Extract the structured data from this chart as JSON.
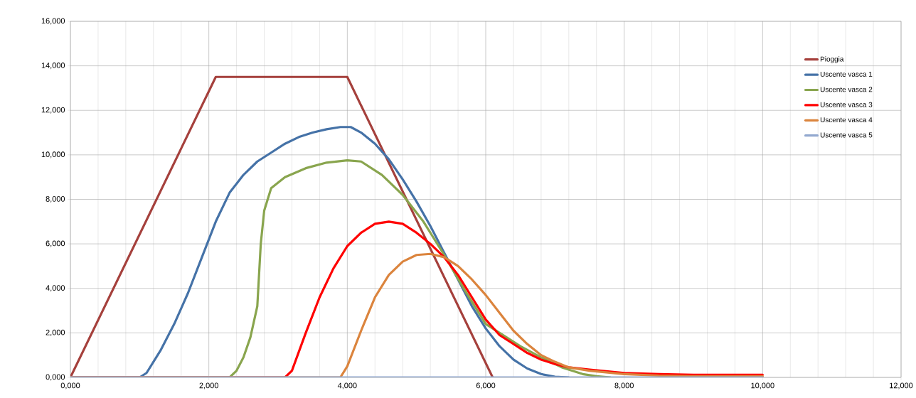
{
  "chart_data": {
    "type": "line",
    "xlim": [
      0,
      12
    ],
    "ylim": [
      0,
      16
    ],
    "xticks": [
      {
        "value": 0,
        "label": "0,000"
      },
      {
        "value": 2,
        "label": "2,000"
      },
      {
        "value": 4,
        "label": "4,000"
      },
      {
        "value": 6,
        "label": "6,000"
      },
      {
        "value": 8,
        "label": "8,000"
      },
      {
        "value": 10,
        "label": "10,000"
      },
      {
        "value": 12,
        "label": "12,000"
      }
    ],
    "yticks": [
      {
        "value": 0,
        "label": "0,000"
      },
      {
        "value": 2,
        "label": "2,000"
      },
      {
        "value": 4,
        "label": "4,000"
      },
      {
        "value": 6,
        "label": "6,000"
      },
      {
        "value": 8,
        "label": "8,000"
      },
      {
        "value": 10,
        "label": "10,000"
      },
      {
        "value": 12,
        "label": "12,000"
      },
      {
        "value": 14,
        "label": "14,000"
      },
      {
        "value": 16,
        "label": "16,000"
      }
    ],
    "grid": true,
    "legend": "top right",
    "marker": "none",
    "line_style": "solid",
    "series": [
      {
        "name": "Pioggia",
        "color": "#a5403c",
        "x": [
          0,
          2.1,
          4.0,
          6.1
        ],
        "values": [
          0,
          13.5,
          13.5,
          0
        ]
      },
      {
        "name": "Uscente vasca 1",
        "color": "#4572a7",
        "x": [
          0,
          1.0,
          1.1,
          1.3,
          1.5,
          1.7,
          1.9,
          2.1,
          2.3,
          2.5,
          2.7,
          2.9,
          3.1,
          3.3,
          3.5,
          3.7,
          3.9,
          4.05,
          4.2,
          4.4,
          4.6,
          4.8,
          5.0,
          5.2,
          5.4,
          5.6,
          5.8,
          6.0,
          6.2,
          6.4,
          6.6,
          6.8,
          7.0,
          7.2
        ],
        "values": [
          0,
          0,
          0.2,
          1.2,
          2.4,
          3.8,
          5.4,
          7.0,
          8.3,
          9.1,
          9.7,
          10.1,
          10.5,
          10.8,
          11.0,
          11.15,
          11.25,
          11.25,
          11.0,
          10.5,
          9.8,
          8.9,
          7.9,
          6.8,
          5.6,
          4.4,
          3.2,
          2.2,
          1.4,
          0.8,
          0.4,
          0.15,
          0.03,
          0
        ]
      },
      {
        "name": "Uscente vasca 2",
        "color": "#89a54e",
        "x": [
          0,
          2.3,
          2.4,
          2.5,
          2.6,
          2.7,
          2.75,
          2.8,
          2.9,
          3.1,
          3.4,
          3.7,
          4.0,
          4.2,
          4.5,
          4.8,
          5.1,
          5.4,
          5.7,
          6.0,
          6.2,
          6.5,
          6.8,
          7.1,
          7.4,
          7.6,
          7.8
        ],
        "values": [
          0,
          0,
          0.3,
          0.9,
          1.8,
          3.2,
          6.0,
          7.5,
          8.5,
          9.0,
          9.4,
          9.65,
          9.75,
          9.7,
          9.1,
          8.2,
          7.0,
          5.5,
          3.9,
          2.4,
          2.0,
          1.4,
          0.9,
          0.45,
          0.15,
          0.05,
          0
        ]
      },
      {
        "name": "Uscente vasca 3",
        "color": "#ff0000",
        "x": [
          0,
          3.1,
          3.2,
          3.4,
          3.6,
          3.8,
          4.0,
          4.2,
          4.4,
          4.6,
          4.8,
          5.0,
          5.2,
          5.4,
          5.6,
          5.8,
          6.0,
          6.2,
          6.4,
          6.6,
          6.8,
          7.0,
          7.2,
          7.5,
          8.0,
          8.5,
          9.0,
          10.0
        ],
        "values": [
          0,
          0,
          0.3,
          2.0,
          3.6,
          4.9,
          5.9,
          6.5,
          6.9,
          7.0,
          6.9,
          6.5,
          6.0,
          5.4,
          4.6,
          3.6,
          2.6,
          1.9,
          1.5,
          1.1,
          0.8,
          0.6,
          0.45,
          0.35,
          0.2,
          0.15,
          0.12,
          0.12
        ]
      },
      {
        "name": "Uscente vasca 4",
        "color": "#db843d",
        "x": [
          0,
          3.9,
          4.0,
          4.2,
          4.4,
          4.6,
          4.8,
          5.0,
          5.2,
          5.4,
          5.6,
          5.8,
          6.0,
          6.2,
          6.4,
          6.6,
          6.8,
          7.0,
          7.2,
          7.5,
          8.0,
          8.5,
          9.0,
          10.0
        ],
        "values": [
          0,
          0,
          0.5,
          2.1,
          3.6,
          4.6,
          5.2,
          5.5,
          5.55,
          5.4,
          5.0,
          4.4,
          3.7,
          2.9,
          2.1,
          1.5,
          1.0,
          0.7,
          0.45,
          0.3,
          0.15,
          0.08,
          0.05,
          0.05
        ]
      },
      {
        "name": "Uscente vasca 5",
        "color": "#93a9cf",
        "x": [
          0,
          10.0
        ],
        "values": [
          0,
          0
        ]
      }
    ]
  }
}
